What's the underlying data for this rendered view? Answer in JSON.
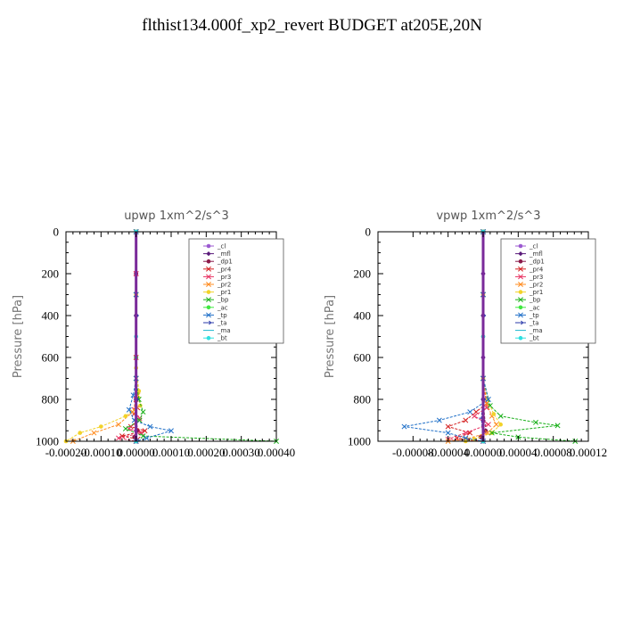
{
  "title": "flthist134.000f_xp2_revert  BUDGET at205E,20N",
  "chart_data": [
    {
      "type": "line",
      "title": "upwp   1xm^2/s^3",
      "ylabel": "Pressure [hPa]",
      "xlim": [
        -0.0002,
        0.0004
      ],
      "ylim": [
        1000,
        0
      ],
      "xticks": [
        "-0.00020",
        "-0.00010",
        "0.00000",
        "0.00010",
        "0.00020",
        "0.00030",
        "0.00040"
      ],
      "xtick_values": [
        -0.0002,
        -0.0001,
        0,
        0.0001,
        0.0002,
        0.0003,
        0.0004
      ],
      "yticks": [
        "0",
        "200",
        "400",
        "600",
        "800",
        "1000"
      ],
      "ytick_values": [
        0,
        200,
        400,
        600,
        800,
        1000
      ],
      "series": [
        {
          "name": "_cl",
          "color": "#9b59d0",
          "marker": "circle",
          "points": [
            [
              0,
              0
            ],
            [
              0,
              200
            ],
            [
              0,
              400
            ],
            [
              0,
              600
            ],
            [
              0,
              800
            ],
            [
              0,
              900
            ],
            [
              0,
              950
            ],
            [
              0,
              1000
            ]
          ]
        },
        {
          "name": "_mfl",
          "color": "#5a1a7a",
          "marker": "diamond",
          "points": [
            [
              0,
              0
            ],
            [
              0,
              200
            ],
            [
              0,
              400
            ],
            [
              0,
              600
            ],
            [
              0,
              800
            ],
            [
              0,
              900
            ],
            [
              0,
              950
            ],
            [
              0,
              1000
            ]
          ]
        },
        {
          "name": "_dp1",
          "color": "#8b1a4a",
          "marker": "circle",
          "points": [
            [
              0,
              0
            ],
            [
              0,
              200
            ],
            [
              0,
              400
            ],
            [
              0,
              600
            ],
            [
              0,
              800
            ],
            [
              0,
              900
            ],
            [
              5e-06,
              950
            ],
            [
              -5e-06,
              980
            ],
            [
              0,
              1000
            ]
          ]
        },
        {
          "name": "_pr4",
          "color": "#d42020",
          "marker": "cross",
          "points": [
            [
              0,
              0
            ],
            [
              0,
              200
            ],
            [
              0,
              600
            ],
            [
              0,
              800
            ],
            [
              4e-06,
              840
            ],
            [
              -6e-06,
              870
            ],
            [
              1e-05,
              900
            ],
            [
              -1.5e-05,
              930
            ],
            [
              2.5e-05,
              950
            ],
            [
              -4e-05,
              975
            ],
            [
              5e-06,
              990
            ],
            [
              0,
              1000
            ]
          ]
        },
        {
          "name": "_pr3",
          "color": "#e83060",
          "marker": "cross",
          "points": [
            [
              0,
              0
            ],
            [
              0,
              200
            ],
            [
              0,
              700
            ],
            [
              -5e-06,
              850
            ],
            [
              1e-05,
              890
            ],
            [
              -2e-05,
              940
            ],
            [
              1.5e-05,
              960
            ],
            [
              -5e-05,
              985
            ],
            [
              0,
              1000
            ]
          ]
        },
        {
          "name": "_pr2",
          "color": "#ff8c20",
          "marker": "cross",
          "points": [
            [
              0,
              0
            ],
            [
              0,
              300
            ],
            [
              0,
              700
            ],
            [
              5e-06,
              780
            ],
            [
              -1e-05,
              860
            ],
            [
              -5e-05,
              920
            ],
            [
              -0.00012,
              960
            ],
            [
              -0.00018,
              1000
            ]
          ]
        },
        {
          "name": "_pr1",
          "color": "#f2d22a",
          "marker": "circle",
          "points": [
            [
              0,
              0
            ],
            [
              0,
              300
            ],
            [
              0,
              650
            ],
            [
              8e-06,
              760
            ],
            [
              1.2e-05,
              830
            ],
            [
              -3e-05,
              880
            ],
            [
              -0.0001,
              930
            ],
            [
              -0.00016,
              960
            ],
            [
              -0.0002,
              1000
            ]
          ]
        },
        {
          "name": "_bp",
          "color": "#1ab01a",
          "marker": "cross",
          "points": [
            [
              0,
              0
            ],
            [
              0,
              300
            ],
            [
              0,
              700
            ],
            [
              8e-06,
              800
            ],
            [
              2e-05,
              860
            ],
            [
              1e-05,
              900
            ],
            [
              -3e-05,
              940
            ],
            [
              2e-05,
              975
            ],
            [
              0.0004,
              1000
            ]
          ]
        },
        {
          "name": "_ac",
          "color": "#40e840",
          "marker": "circle",
          "points": [
            [
              0,
              0
            ],
            [
              0,
              600
            ],
            [
              0,
              900
            ],
            [
              0,
              1000
            ]
          ]
        },
        {
          "name": "_tp",
          "color": "#2070c8",
          "marker": "cross",
          "points": [
            [
              0,
              0
            ],
            [
              0,
              300
            ],
            [
              0,
              700
            ],
            [
              -8e-06,
              780
            ],
            [
              -2e-05,
              850
            ],
            [
              -5e-06,
              900
            ],
            [
              4e-05,
              930
            ],
            [
              0.0001,
              950
            ],
            [
              3e-05,
              985
            ],
            [
              0,
              1000
            ]
          ]
        },
        {
          "name": "_ta",
          "color": "#2a3aaa",
          "marker": "arrow",
          "points": [
            [
              0,
              0
            ],
            [
              0,
              400
            ],
            [
              0,
              800
            ],
            [
              0,
              1000
            ]
          ]
        },
        {
          "name": "_ma",
          "color": "#20b8d0",
          "marker": "none",
          "points": [
            [
              0,
              0
            ],
            [
              0,
              500
            ],
            [
              0,
              1000
            ]
          ]
        },
        {
          "name": "_bt",
          "color": "#30e0e0",
          "marker": "circle",
          "points": [
            [
              0,
              0
            ],
            [
              0,
              500
            ],
            [
              0,
              1000
            ]
          ]
        }
      ]
    },
    {
      "type": "line",
      "title": "vpwp   1xm^2/s^3",
      "ylabel": "Pressure [hPa]",
      "xlim": [
        -0.00012,
        0.00012
      ],
      "ylim": [
        1000,
        0
      ],
      "xticks": [
        "-0.00008",
        "-0.00004",
        "0.00000",
        "0.00004",
        "0.00008",
        "0.00012"
      ],
      "xtick_values": [
        -8e-05,
        -4e-05,
        0,
        4e-05,
        8e-05,
        0.00012
      ],
      "yticks": [
        "0",
        "200",
        "400",
        "600",
        "800",
        "1000"
      ],
      "ytick_values": [
        0,
        200,
        400,
        600,
        800,
        1000
      ],
      "series": [
        {
          "name": "_cl",
          "color": "#9b59d0",
          "marker": "circle",
          "points": [
            [
              0,
              0
            ],
            [
              0,
              200
            ],
            [
              0,
              400
            ],
            [
              0,
              600
            ],
            [
              0,
              800
            ],
            [
              0,
              900
            ],
            [
              0,
              1000
            ]
          ]
        },
        {
          "name": "_mfl",
          "color": "#5a1a7a",
          "marker": "diamond",
          "points": [
            [
              0,
              0
            ],
            [
              0,
              200
            ],
            [
              0,
              400
            ],
            [
              0,
              600
            ],
            [
              0,
              800
            ],
            [
              0,
              900
            ],
            [
              0,
              1000
            ]
          ]
        },
        {
          "name": "_dp1",
          "color": "#8b1a4a",
          "marker": "circle",
          "points": [
            [
              0,
              0
            ],
            [
              0,
              400
            ],
            [
              0,
              800
            ],
            [
              3e-06,
              950
            ],
            [
              -3e-06,
              980
            ],
            [
              0,
              1000
            ]
          ]
        },
        {
          "name": "_pr4",
          "color": "#d42020",
          "marker": "cross",
          "points": [
            [
              0,
              0
            ],
            [
              0,
              300
            ],
            [
              0,
              700
            ],
            [
              4e-06,
              820
            ],
            [
              -8e-06,
              860
            ],
            [
              -2e-05,
              900
            ],
            [
              -4e-05,
              930
            ],
            [
              -1.5e-05,
              960
            ],
            [
              -3e-05,
              985
            ],
            [
              0,
              1000
            ]
          ]
        },
        {
          "name": "_pr3",
          "color": "#e83060",
          "marker": "cross",
          "points": [
            [
              0,
              0
            ],
            [
              0,
              300
            ],
            [
              0,
              700
            ],
            [
              4e-06,
              840
            ],
            [
              -1e-05,
              880
            ],
            [
              6e-06,
              920
            ],
            [
              -2e-05,
              960
            ],
            [
              -4e-05,
              990
            ],
            [
              0,
              1000
            ]
          ]
        },
        {
          "name": "_pr2",
          "color": "#ff8c20",
          "marker": "cross",
          "points": [
            [
              0,
              0
            ],
            [
              0,
              300
            ],
            [
              0,
              700
            ],
            [
              4e-06,
              820
            ],
            [
              1e-05,
              880
            ],
            [
              1.5e-05,
              920
            ],
            [
              5e-06,
              960
            ],
            [
              -2e-05,
              990
            ],
            [
              -4e-05,
              1000
            ]
          ]
        },
        {
          "name": "_pr1",
          "color": "#f2d22a",
          "marker": "circle",
          "points": [
            [
              0,
              0
            ],
            [
              0,
              300
            ],
            [
              0,
              700
            ],
            [
              5e-06,
              800
            ],
            [
              1.2e-05,
              870
            ],
            [
              2e-05,
              920
            ],
            [
              1e-05,
              960
            ],
            [
              -1e-05,
              990
            ],
            [
              -2e-05,
              1000
            ]
          ]
        },
        {
          "name": "_bp",
          "color": "#1ab01a",
          "marker": "cross",
          "points": [
            [
              0,
              0
            ],
            [
              0,
              300
            ],
            [
              0,
              700
            ],
            [
              8e-06,
              830
            ],
            [
              2e-05,
              880
            ],
            [
              6e-05,
              910
            ],
            [
              8.5e-05,
              925
            ],
            [
              1e-05,
              960
            ],
            [
              4e-05,
              980
            ],
            [
              0.000105,
              1000
            ]
          ]
        },
        {
          "name": "_ac",
          "color": "#40e840",
          "marker": "circle",
          "points": [
            [
              0,
              0
            ],
            [
              0,
              500
            ],
            [
              0,
              1000
            ]
          ]
        },
        {
          "name": "_tp",
          "color": "#2070c8",
          "marker": "cross",
          "points": [
            [
              0,
              0
            ],
            [
              0,
              300
            ],
            [
              0,
              700
            ],
            [
              6e-06,
              800
            ],
            [
              -1.5e-05,
              860
            ],
            [
              -5e-05,
              900
            ],
            [
              -9e-05,
              930
            ],
            [
              -4e-05,
              960
            ],
            [
              -2e-05,
              985
            ],
            [
              0,
              1000
            ]
          ]
        },
        {
          "name": "_ta",
          "color": "#2a3aaa",
          "marker": "arrow",
          "points": [
            [
              0,
              0
            ],
            [
              0,
              400
            ],
            [
              0,
              800
            ],
            [
              -2e-06,
              890
            ],
            [
              0,
              1000
            ]
          ]
        },
        {
          "name": "_ma",
          "color": "#20b8d0",
          "marker": "none",
          "points": [
            [
              0,
              0
            ],
            [
              0,
              500
            ],
            [
              0,
              1000
            ]
          ]
        },
        {
          "name": "_bt",
          "color": "#30e0e0",
          "marker": "circle",
          "points": [
            [
              0,
              0
            ],
            [
              0,
              500
            ],
            [
              0,
              1000
            ]
          ]
        }
      ]
    }
  ]
}
